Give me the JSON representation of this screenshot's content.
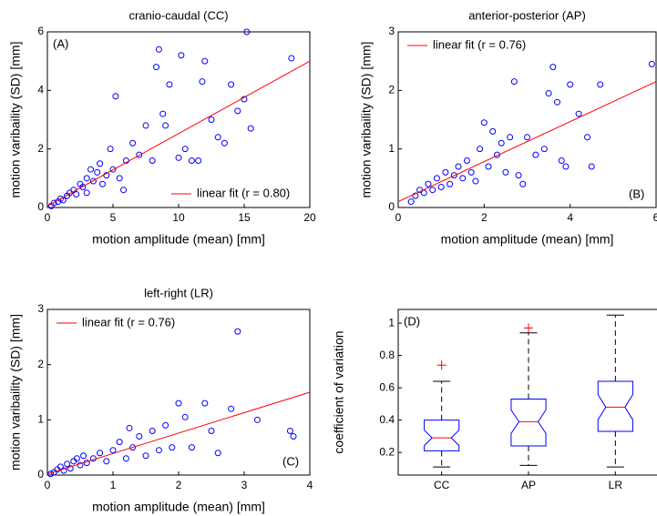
{
  "chart_data": [
    {
      "type": "scatter",
      "title": "cranio-caudal (CC)",
      "xlabel": "motion amplitude (mean) [mm]",
      "ylabel": "motion varibaility (SD) [mm]",
      "annotation": "(A)",
      "annotation_corner": "upper left",
      "legend": "lower right",
      "xlim": [
        0,
        20
      ],
      "ylim": [
        0,
        6
      ],
      "xticks": [
        0,
        5,
        10,
        15,
        20
      ],
      "yticks": [
        0,
        2,
        4,
        6
      ],
      "series": [
        {
          "color": "#0000ff",
          "marker": "circle",
          "x": [
            0.3,
            0.5,
            0.8,
            1,
            1.2,
            1.5,
            1.7,
            2,
            2.2,
            2.5,
            2.7,
            3,
            3,
            3.3,
            3.5,
            3.8,
            4,
            4.2,
            4.5,
            4.8,
            5,
            5.2,
            5.5,
            5.8,
            6,
            6.5,
            7,
            7.5,
            8,
            8.3,
            8.5,
            8.8,
            9,
            9.3,
            10,
            10.2,
            10.5,
            11,
            11.5,
            11.8,
            12,
            12.5,
            13,
            13.5,
            14,
            14.5,
            15,
            15.2,
            15.5,
            18.6
          ],
          "values": [
            0.05,
            0.15,
            0.2,
            0.3,
            0.25,
            0.4,
            0.5,
            0.6,
            0.45,
            0.8,
            0.7,
            1.0,
            0.5,
            1.3,
            0.9,
            1.2,
            1.5,
            0.8,
            1.1,
            2.0,
            1.3,
            3.8,
            1.0,
            0.6,
            1.6,
            2.2,
            1.8,
            2.8,
            1.6,
            4.8,
            5.4,
            3.2,
            2.8,
            4.2,
            1.7,
            5.2,
            2.0,
            1.6,
            1.6,
            4.3,
            5.0,
            3.0,
            2.4,
            2.2,
            4.2,
            3.3,
            3.7,
            6.0,
            2.7,
            5.1
          ]
        },
        {
          "name": "linear fit (r = 0.80)",
          "color": "#ff0000",
          "marker": "line",
          "x": [
            0,
            20
          ],
          "values": [
            0.05,
            5.0
          ]
        }
      ]
    },
    {
      "type": "scatter",
      "title": "anterior-posterior (AP)",
      "xlabel": "motion amplitude (mean) [mm]",
      "ylabel": "motion varibaility (SD) [mm]",
      "annotation": "(B)",
      "annotation_corner": "lower right",
      "legend": "upper left",
      "xlim": [
        0,
        6
      ],
      "ylim": [
        0,
        3
      ],
      "xticks": [
        0,
        2,
        4,
        6
      ],
      "yticks": [
        0,
        1,
        2,
        3
      ],
      "series": [
        {
          "color": "#0000ff",
          "marker": "circle",
          "x": [
            0.3,
            0.4,
            0.5,
            0.6,
            0.7,
            0.8,
            0.9,
            1,
            1.1,
            1.2,
            1.3,
            1.4,
            1.5,
            1.6,
            1.7,
            1.8,
            1.9,
            2,
            2.1,
            2.2,
            2.3,
            2.4,
            2.5,
            2.6,
            2.7,
            2.8,
            2.9,
            3,
            3.2,
            3.4,
            3.5,
            3.6,
            3.7,
            3.8,
            3.9,
            4,
            4.2,
            4.4,
            4.5,
            4.7,
            5.9
          ],
          "values": [
            0.1,
            0.2,
            0.3,
            0.25,
            0.4,
            0.3,
            0.5,
            0.35,
            0.6,
            0.4,
            0.55,
            0.7,
            0.5,
            0.8,
            0.6,
            0.45,
            1.0,
            1.45,
            0.7,
            1.3,
            0.9,
            1.1,
            0.6,
            1.2,
            2.15,
            0.55,
            0.4,
            1.2,
            0.9,
            1.0,
            1.95,
            2.4,
            1.8,
            0.8,
            0.7,
            2.1,
            1.6,
            1.2,
            0.7,
            2.1,
            2.45
          ]
        },
        {
          "name": "linear fit (r = 0.76)",
          "color": "#ff0000",
          "marker": "line",
          "x": [
            0,
            6
          ],
          "values": [
            0.1,
            2.15
          ]
        }
      ]
    },
    {
      "type": "scatter",
      "title": "left-right (LR)",
      "xlabel": "motion amplitude (mean) [mm]",
      "ylabel": "motion varibaility (SD) [mm]",
      "annotation": "(C)",
      "annotation_corner": "lower right",
      "legend": "upper left",
      "xlim": [
        0,
        4
      ],
      "ylim": [
        0,
        3
      ],
      "xticks": [
        0,
        1,
        2,
        3,
        4
      ],
      "yticks": [
        0,
        1,
        2,
        3
      ],
      "series": [
        {
          "color": "#0000ff",
          "marker": "circle",
          "x": [
            0.05,
            0.1,
            0.15,
            0.2,
            0.25,
            0.3,
            0.35,
            0.4,
            0.45,
            0.5,
            0.55,
            0.6,
            0.7,
            0.8,
            0.9,
            1,
            1.1,
            1.2,
            1.25,
            1.3,
            1.4,
            1.5,
            1.6,
            1.7,
            1.8,
            1.9,
            2,
            2.1,
            2.2,
            2.4,
            2.5,
            2.6,
            2.8,
            2.9,
            3.2,
            3.7,
            3.75
          ],
          "values": [
            0.02,
            0.05,
            0.1,
            0.15,
            0.08,
            0.2,
            0.12,
            0.25,
            0.3,
            0.18,
            0.35,
            0.22,
            0.3,
            0.4,
            0.25,
            0.45,
            0.6,
            0.3,
            0.85,
            0.5,
            0.7,
            0.35,
            0.8,
            0.45,
            0.9,
            0.5,
            1.3,
            1.05,
            0.5,
            1.3,
            0.8,
            0.4,
            1.2,
            2.6,
            1.0,
            0.8,
            0.7
          ]
        },
        {
          "name": "linear fit (r = 0.76)",
          "color": "#ff0000",
          "marker": "line",
          "x": [
            0,
            4
          ],
          "values": [
            0.02,
            1.5
          ]
        }
      ]
    },
    {
      "type": "box",
      "ylabel": "coefficient of variation",
      "annotation": "(D)",
      "annotation_corner": "upper left",
      "ylim": [
        0.06,
        1.085
      ],
      "yticks": [
        0.2,
        0.4,
        0.6,
        0.8,
        1
      ],
      "box_color": "#0000ff",
      "median_color": "#ff0000",
      "flier_color": "#ff0000",
      "categories": [
        "CC",
        "AP",
        "LR"
      ],
      "boxes": [
        {
          "whislo": 0.11,
          "q1": 0.21,
          "med": 0.29,
          "q3": 0.4,
          "whishi": 0.64,
          "fliers": [
            0.74
          ]
        },
        {
          "whislo": 0.12,
          "q1": 0.24,
          "med": 0.39,
          "q3": 0.53,
          "whishi": 0.94,
          "fliers": [
            0.97
          ]
        },
        {
          "whislo": 0.11,
          "q1": 0.33,
          "med": 0.48,
          "q3": 0.64,
          "whishi": 1.05,
          "fliers": []
        }
      ]
    }
  ]
}
